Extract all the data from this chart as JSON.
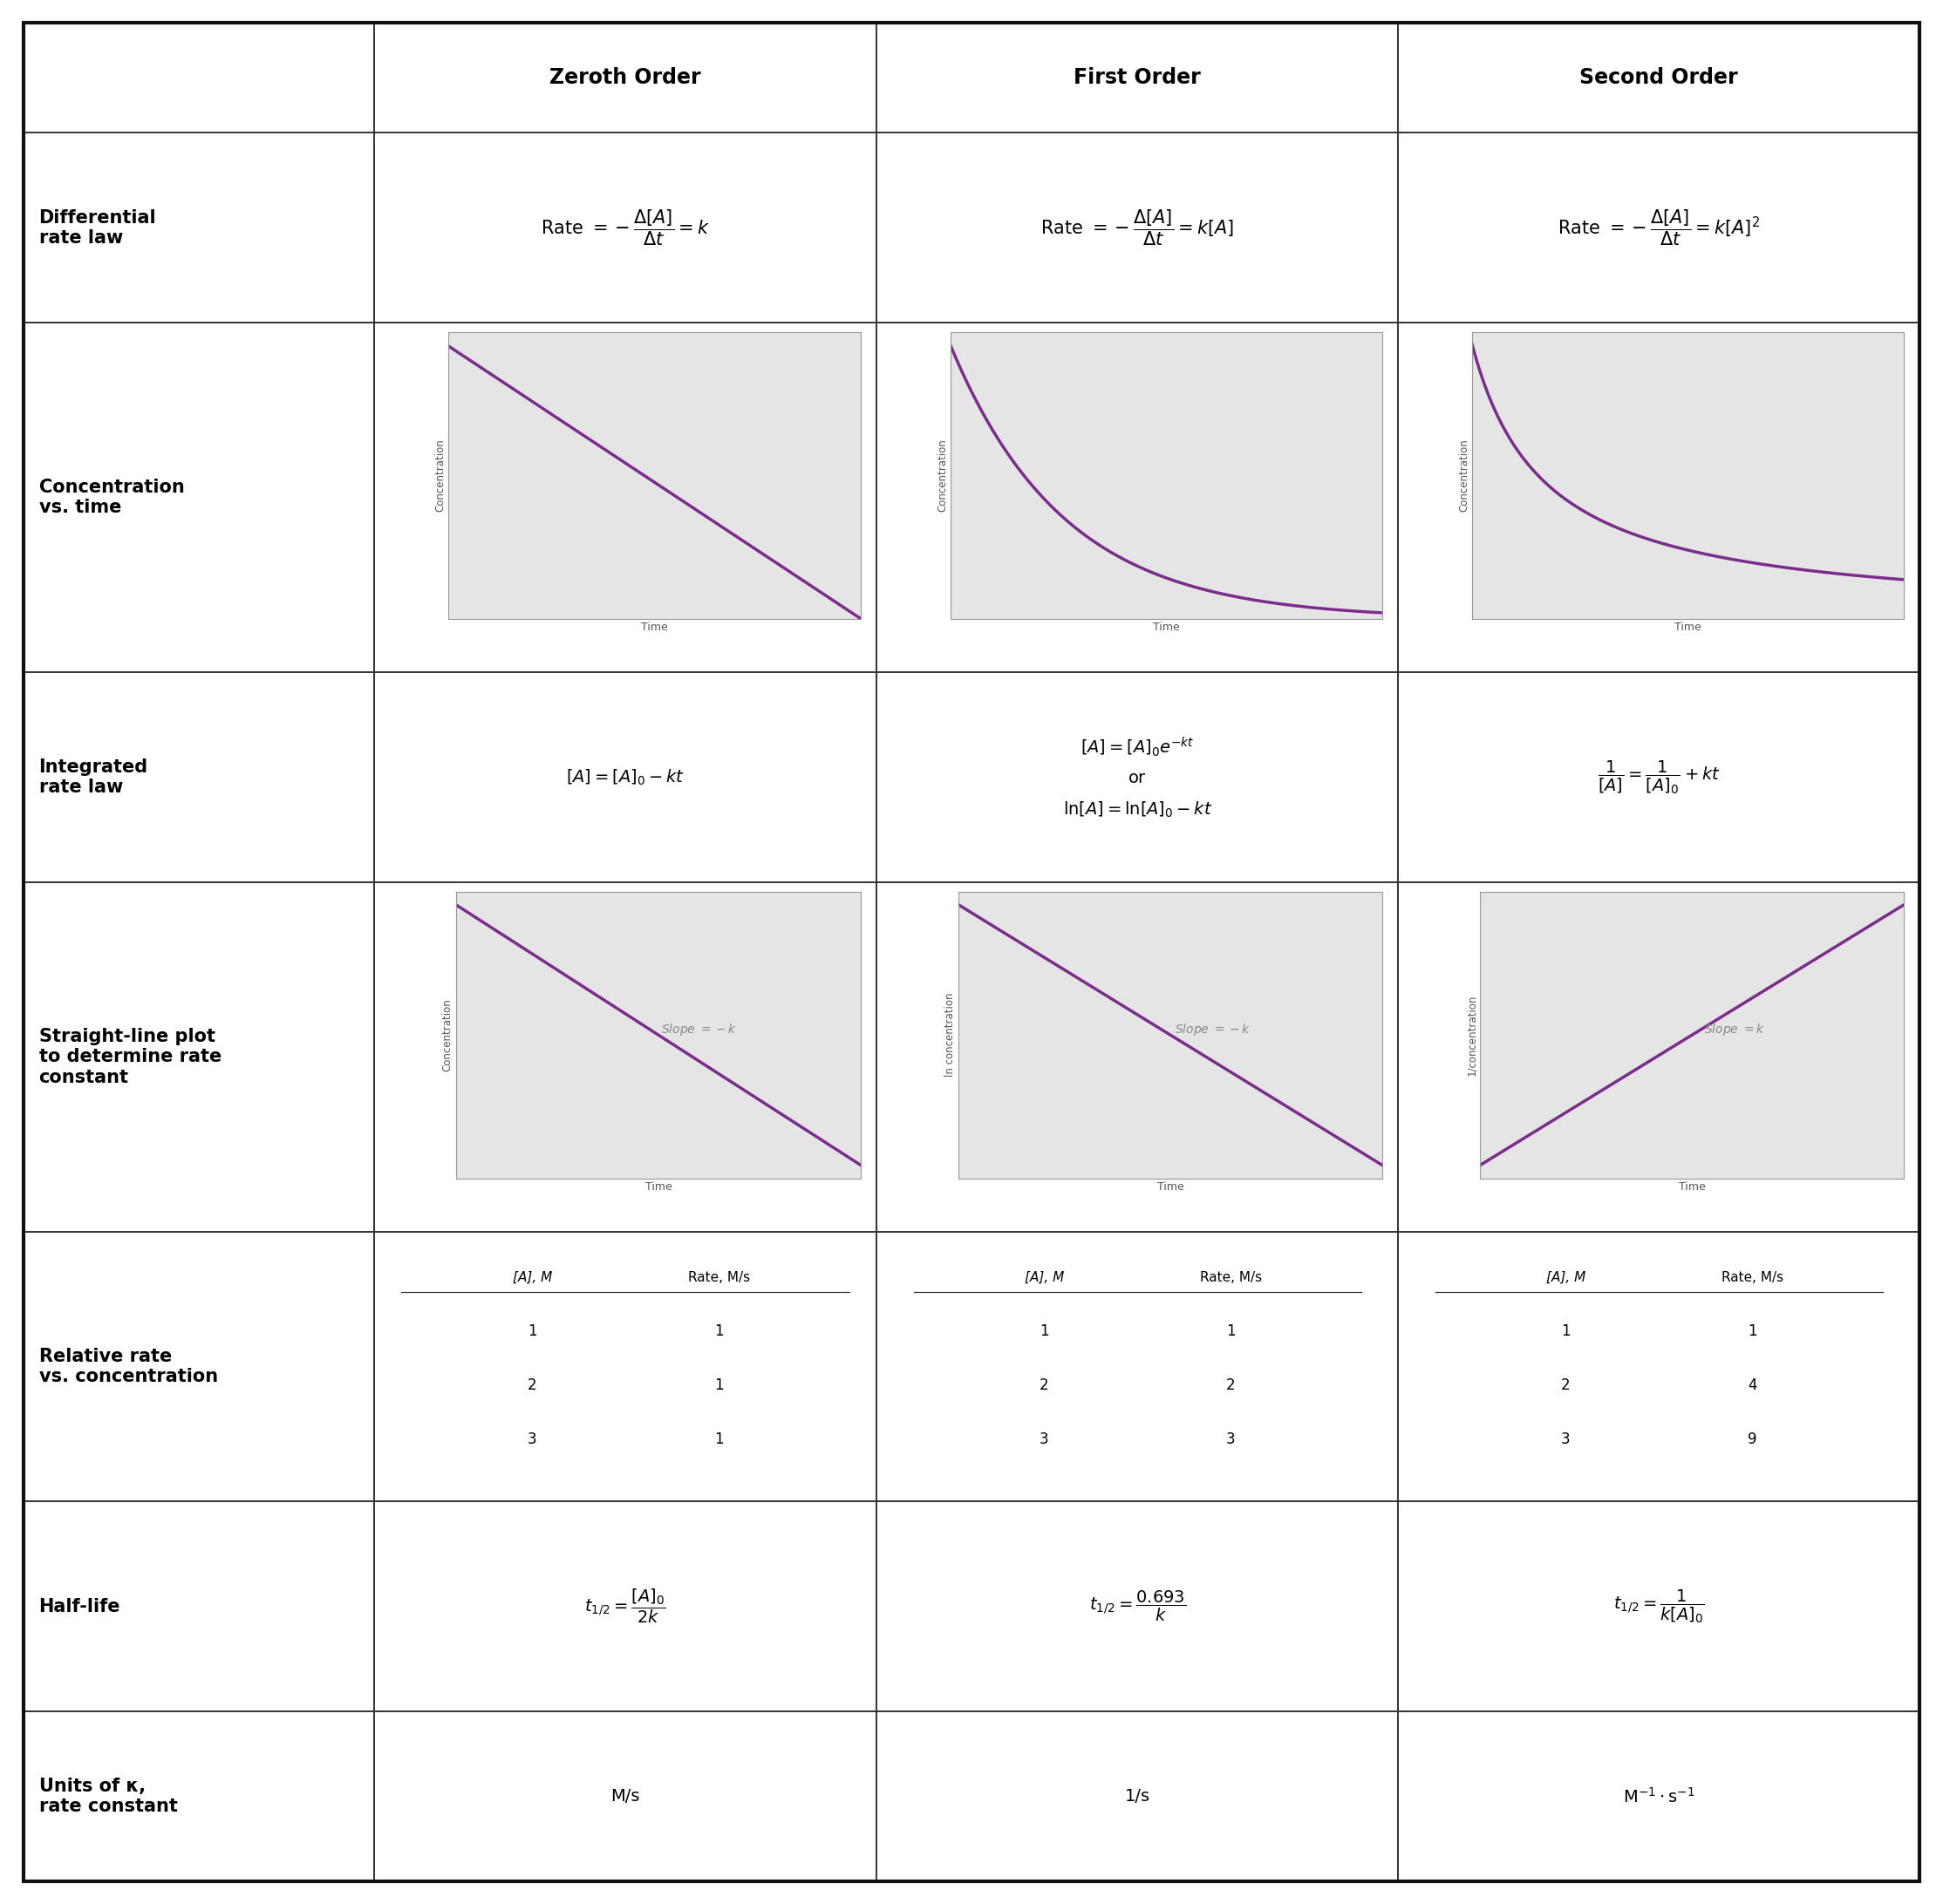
{
  "col_headers": [
    "Zeroth Order",
    "First Order",
    "Second Order"
  ],
  "row_headers": [
    "Differential\nrate law",
    "Concentration\nvs. time",
    "Integrated\nrate law",
    "Straight-line plot\nto determine rate\nconstant",
    "Relative rate\nvs. concentration",
    "Half-life",
    "Units of κ,\nrate constant"
  ],
  "differential_formulas": [
    "Rate $= -\\dfrac{\\Delta[A]}{\\Delta t} = k$",
    "Rate $= -\\dfrac{\\Delta[A]}{\\Delta t} = k[A]$",
    "Rate $= -\\dfrac{\\Delta[A]}{\\Delta t} = k[A]^2$"
  ],
  "integrated_formulas": [
    "$[A] = [A]_0 - kt$",
    "$[A] = [A]_0e^{-kt}$\nor\n$\\mathrm{ln}[A] = \\mathrm{ln}[A]_0 - kt$",
    "$\\dfrac{1}{[A]} = \\dfrac{1}{[A]_0} + kt$"
  ],
  "halflife_formulas": [
    "$t_{1/2} = \\dfrac{[A]_0}{2k}$",
    "$t_{1/2} = \\dfrac{0.693}{k}$",
    "$t_{1/2} = \\dfrac{1}{k[A]_0}$"
  ],
  "units_formulas": [
    "M/s",
    "1/s",
    "$\\mathrm{M}^{-1}\\cdot\\mathrm{s}^{-1}$"
  ],
  "rate_tables": [
    {
      "col1": [
        "[A], M",
        "1",
        "2",
        "3"
      ],
      "col2": [
        "Rate, M/s",
        "1",
        "1",
        "1"
      ]
    },
    {
      "col1": [
        "[A], M",
        "1",
        "2",
        "3"
      ],
      "col2": [
        "Rate, M/s",
        "1",
        "2",
        "3"
      ]
    },
    {
      "col1": [
        "[A], M",
        "1",
        "2",
        "3"
      ],
      "col2": [
        "Rate, M/s",
        "1",
        "4",
        "9"
      ]
    }
  ],
  "slope_labels": [
    "Slope $= -k$",
    "Slope $= -k$",
    "Slope $= k$"
  ],
  "yaxis_labels_top": [
    "Concentration",
    "Concentration",
    "Concentration"
  ],
  "yaxis_labels_straight": [
    "Concentration",
    "ln concentration",
    "1/concentration"
  ],
  "graph_bg_color": "#e5e5e5",
  "line_color": "#7b2d8b",
  "row_header_fontsize": 15,
  "col_header_fontsize": 17,
  "formula_fontsize": 14
}
